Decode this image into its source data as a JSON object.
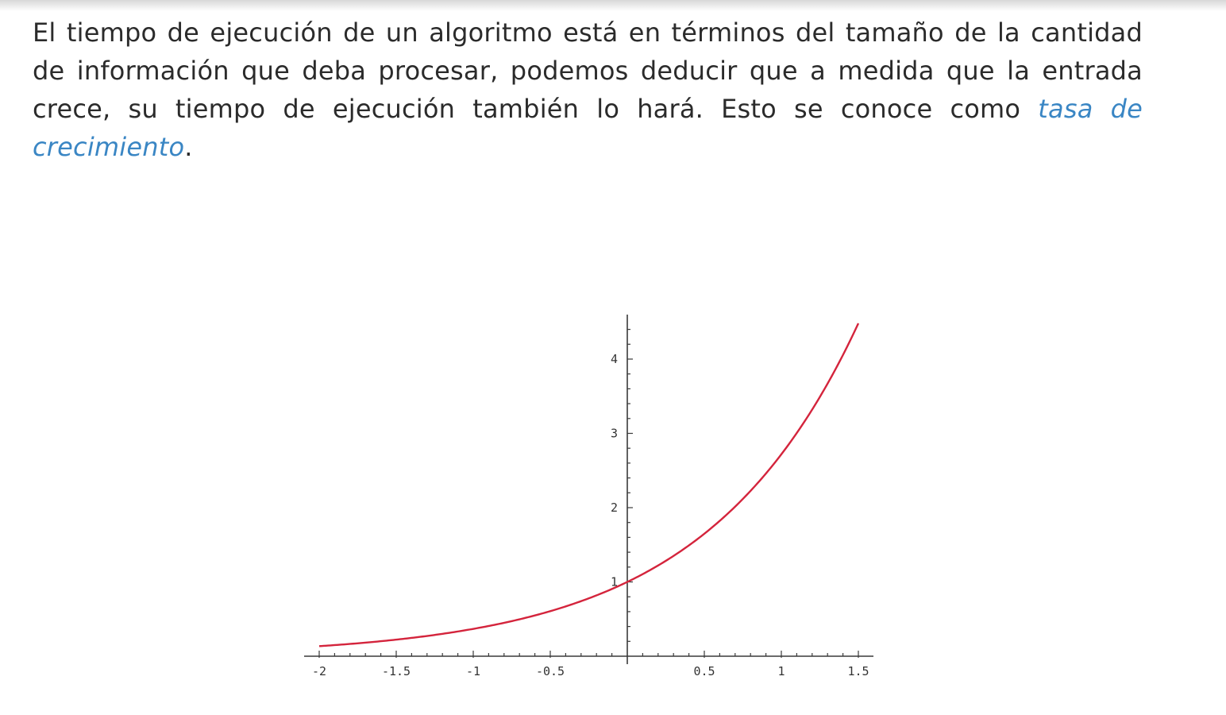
{
  "text": {
    "paragraph": "El tiempo de ejecución de un algoritmo está en términos del tamaño de la cantidad de información que deba procesar, podemos deducir que a medida que la entrada crece, su tiempo de ejecución también lo hará. Esto se conoce como",
    "highlighted_term": "tasa de crecimiento",
    "trailing_punct": "."
  },
  "colors": {
    "curve": "#d4243c",
    "highlight": "#3a86c4"
  },
  "chart_data": {
    "type": "line",
    "function": "exp(x)",
    "title": "",
    "xlabel": "",
    "ylabel": "",
    "xlim": [
      -2,
      1.5
    ],
    "ylim": [
      0,
      4.5
    ],
    "x_ticks": [
      -2,
      -1.5,
      -1,
      -0.5,
      0.5,
      1,
      1.5
    ],
    "x_tick_labels": [
      "-2",
      "-1.5",
      "-1",
      "-0.5",
      "0.5",
      "1",
      "1.5"
    ],
    "y_ticks": [
      1,
      2,
      3,
      4
    ],
    "y_tick_labels": [
      "1",
      "2",
      "3",
      "4"
    ],
    "grid": false,
    "series": [
      {
        "x": [
          -2,
          -1.75,
          -1.5,
          -1.25,
          -1,
          -0.75,
          -0.5,
          -0.25,
          0,
          0.25,
          0.5,
          0.75,
          1,
          1.25,
          1.5
        ],
        "values": [
          0.135,
          0.174,
          0.223,
          0.287,
          0.368,
          0.472,
          0.607,
          0.779,
          1.0,
          1.284,
          1.649,
          2.117,
          2.718,
          3.49,
          4.482
        ]
      }
    ]
  }
}
